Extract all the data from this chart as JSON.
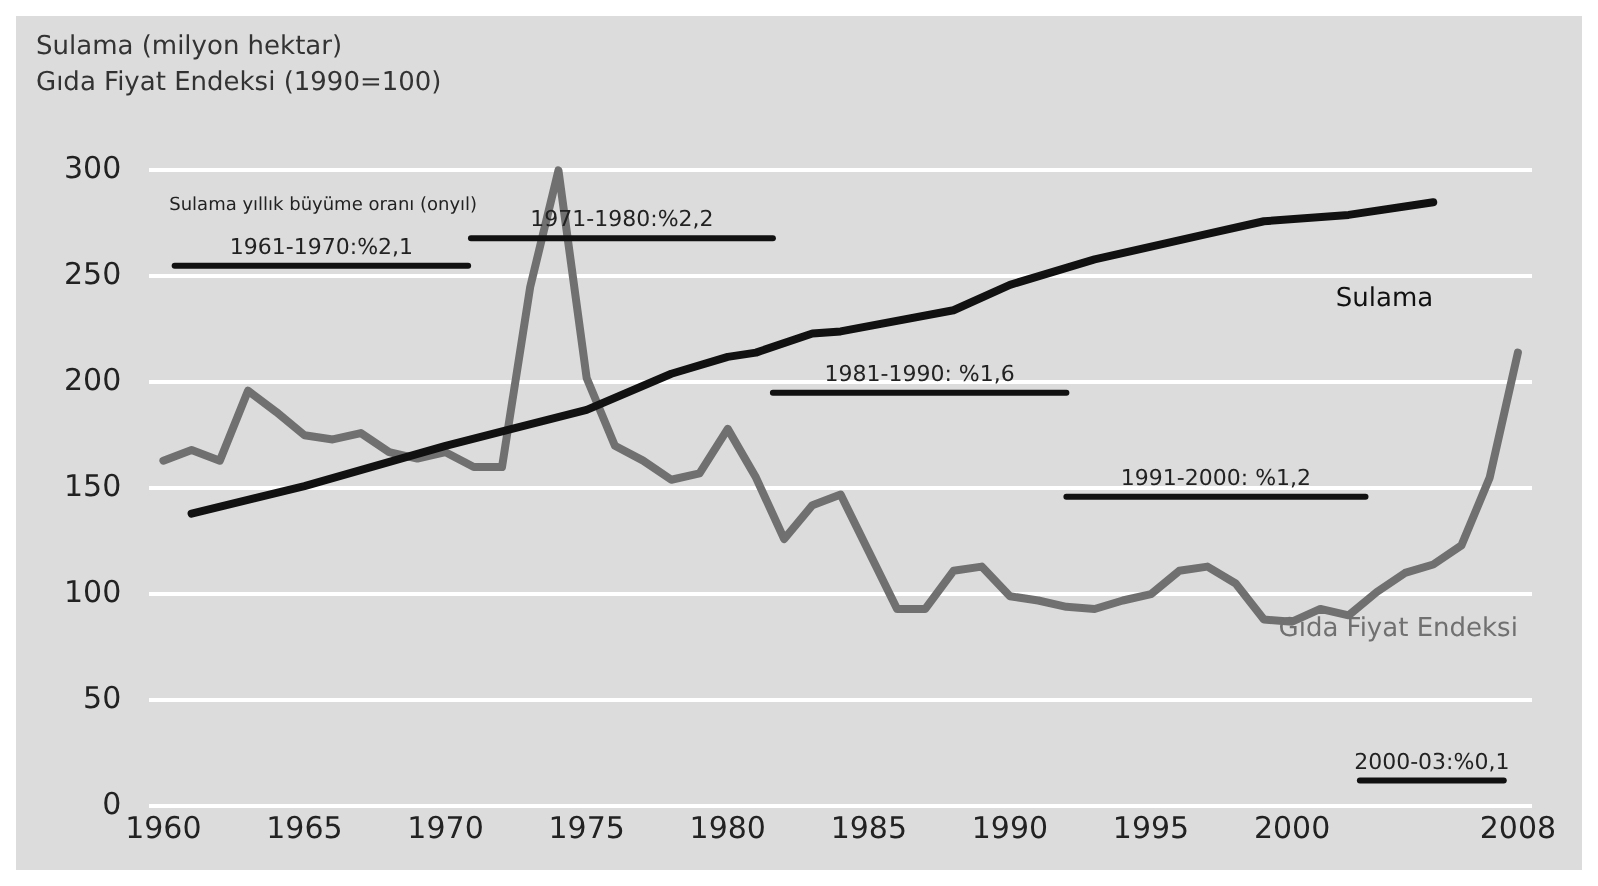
{
  "chart_data": {
    "type": "line",
    "title": "Sulama (milyon hektar)",
    "subtitle": "Gıda Fiyat Endeksi (1990=100)",
    "series": [
      {
        "name": "Sulama",
        "color": "#111111",
        "x": [
          1961,
          1965,
          1970,
          1975,
          1978,
          1980,
          1981,
          1983,
          1984,
          1988,
          1990,
          1993,
          1997,
          1999,
          2002,
          2005
        ],
        "values": [
          138,
          151,
          170,
          187,
          204,
          212,
          214,
          223,
          224,
          234,
          246,
          258,
          270,
          276,
          279,
          285
        ]
      },
      {
        "name": "1961-1970:%2,1",
        "color": "#111111",
        "x": [
          1960.4,
          1970.8
        ],
        "values": [
          255,
          255
        ]
      },
      {
        "name": "1971-1980:%2,2",
        "color": "#111111",
        "x": [
          1970.9,
          1981.6
        ],
        "values": [
          268,
          268
        ]
      },
      {
        "name": "1981-1990: %1,6",
        "color": "#111111",
        "x": [
          1981.6,
          1992
        ],
        "values": [
          195,
          195
        ]
      },
      {
        "name": "1991-2000: %1,2",
        "color": "#111111",
        "x": [
          1992,
          2002.6
        ],
        "values": [
          146,
          146
        ]
      },
      {
        "name": "2000-03:%0,1",
        "color": "#111111",
        "x": [
          2002.4,
          2007.5
        ],
        "values": [
          12,
          12
        ]
      },
      {
        "name": "Gıda Fiyat Endeksi",
        "color": "#707070",
        "x": [
          1960,
          1961,
          1962,
          1963,
          1964,
          1965,
          1966,
          1967,
          1968,
          1969,
          1970,
          1971,
          1972,
          1973,
          1974,
          1975,
          1976,
          1977,
          1978,
          1979,
          1980,
          1981,
          1982,
          1983,
          1984,
          1985,
          1986,
          1987,
          1988,
          1989,
          1990,
          1991,
          1992,
          1993,
          1994,
          1995,
          1996,
          1997,
          1998,
          1999,
          2000,
          2001,
          2002,
          2003,
          2004,
          2005,
          2006,
          2007,
          2008
        ],
        "values": [
          163,
          168,
          163,
          196,
          186,
          175,
          173,
          176,
          167,
          164,
          167,
          160,
          160,
          245,
          300,
          202,
          170,
          163,
          154,
          157,
          178,
          155,
          126,
          142,
          147,
          120,
          93,
          93,
          111,
          113,
          99,
          97,
          94,
          93,
          97,
          100,
          111,
          113,
          105,
          88,
          87,
          93,
          90,
          101,
          110,
          114,
          123,
          155,
          214
        ]
      }
    ],
    "xlim": [
      1959.5,
      2008.5
    ],
    "xticks": [
      1960,
      1965,
      1970,
      1975,
      1980,
      1985,
      1990,
      1995,
      2000,
      2008
    ],
    "ylim": [
      0,
      300
    ],
    "yticks": [
      0,
      50,
      100,
      150,
      200,
      250,
      300
    ],
    "grid": "y",
    "legend": false,
    "marker": "none",
    "line_style": "solid",
    "annotations": [
      "Sulama yıllık büyüme oranı (onyıl)"
    ]
  }
}
